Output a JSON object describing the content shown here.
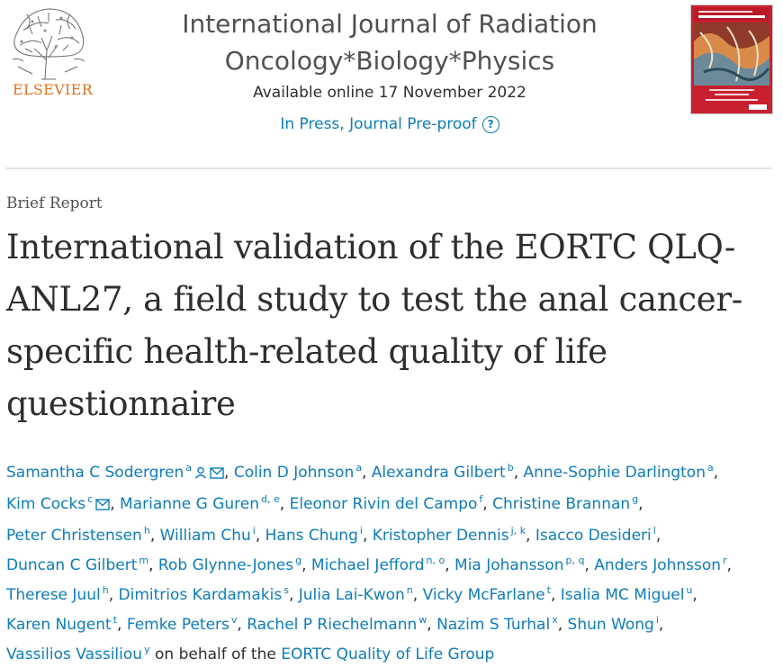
{
  "publisher": {
    "name": "ELSEVIER"
  },
  "journal": {
    "title_line1": "International Journal of Radiation",
    "title_line2": "Oncology*Biology*Physics",
    "available_online": "Available online 17 November 2022",
    "status": "In Press, Journal Pre-proof",
    "help_glyph": "?"
  },
  "article": {
    "type": "Brief Report",
    "title": "International validation of the EORTC QLQ-ANL27, a field study to test the anal cancer-specific health-related quality of life questionnaire"
  },
  "authors": [
    {
      "name": "Samantha C Sodergren",
      "aff": "a",
      "icons": [
        "person-icon",
        "envelope-icon"
      ]
    },
    {
      "name": "Colin D Johnson",
      "aff": "a"
    },
    {
      "name": "Alexandra Gilbert",
      "aff": "b"
    },
    {
      "name": "Anne-Sophie Darlington",
      "aff": "a"
    },
    {
      "name": "Kim Cocks",
      "aff": "c",
      "icons": [
        "envelope-icon"
      ]
    },
    {
      "name": "Marianne G Guren",
      "aff": "d, e"
    },
    {
      "name": "Eleonor Rivin del Campo",
      "aff": "f"
    },
    {
      "name": "Christine Brannan",
      "aff": "g"
    },
    {
      "name": "Peter Christensen",
      "aff": "h"
    },
    {
      "name": "William Chu",
      "aff": "i"
    },
    {
      "name": "Hans Chung",
      "aff": "i"
    },
    {
      "name": "Kristopher Dennis",
      "aff": "j, k"
    },
    {
      "name": "Isacco Desideri",
      "aff": "l"
    },
    {
      "name": "Duncan C Gilbert",
      "aff": "m"
    },
    {
      "name": "Rob Glynne-Jones",
      "aff": "g"
    },
    {
      "name": "Michael Jefford",
      "aff": "n, o"
    },
    {
      "name": "Mia Johansson",
      "aff": "p, q"
    },
    {
      "name": "Anders Johnsson",
      "aff": "r"
    },
    {
      "name": "Therese Juul",
      "aff": "h"
    },
    {
      "name": "Dimitrios Kardamakis",
      "aff": "s"
    },
    {
      "name": "Julia Lai-Kwon",
      "aff": "n"
    },
    {
      "name": "Vicky McFarlane",
      "aff": "t"
    },
    {
      "name": "Isalia MC Miguel",
      "aff": "u"
    },
    {
      "name": "Karen Nugent",
      "aff": "t"
    },
    {
      "name": "Femke Peters",
      "aff": "v"
    },
    {
      "name": "Rachel P Riechelmann",
      "aff": "w"
    },
    {
      "name": "Nazim S Turhal",
      "aff": "x"
    },
    {
      "name": "Shun Wong",
      "aff": "i"
    },
    {
      "name": "Vassilios Vassiliou",
      "aff": "y"
    }
  ],
  "group": {
    "prefix": "on behalf of the",
    "name": "EORTC Quality of Life Group"
  },
  "colors": {
    "link": "#0c7dbb",
    "elsevier_orange": "#e9711c",
    "cover_red": "#c8202f"
  }
}
